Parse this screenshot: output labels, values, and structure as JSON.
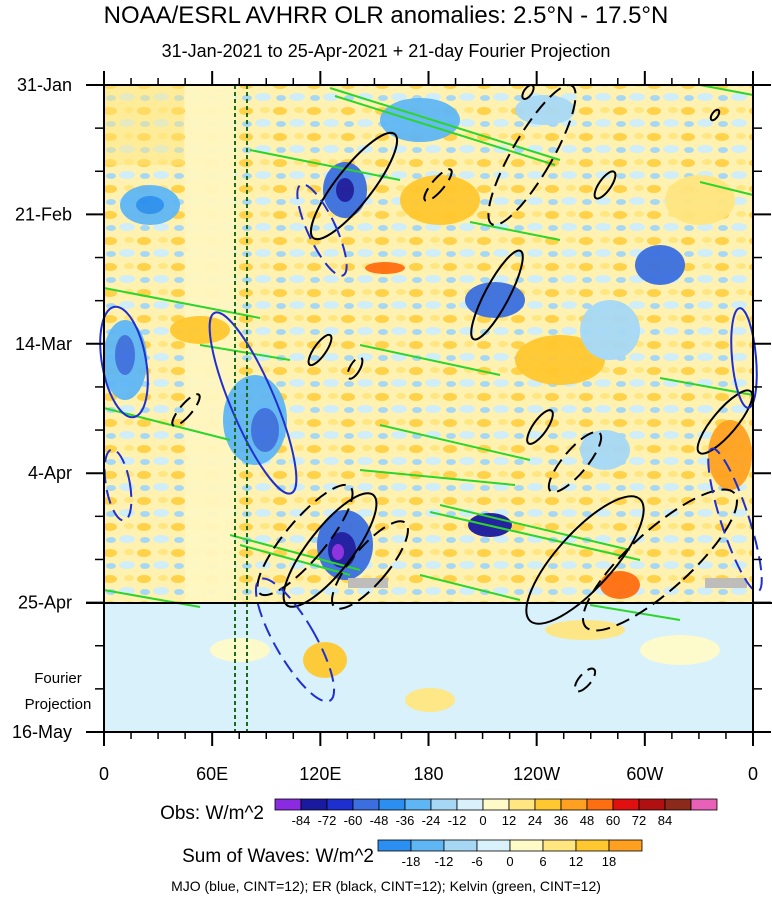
{
  "title": "NOAA/ESRL AVHRR OLR anomalies: 2.5°N - 17.5°N",
  "subtitle": "31-Jan-2021 to 25-Apr-2021 + 21-day Fourier Projection",
  "footer": "MJO (blue, CINT=12); ER (black, CINT=12); Kelvin (green, CINT=12)",
  "chart_data": {
    "type": "heatmap",
    "x_ticks": [
      "0",
      "60E",
      "120E",
      "180",
      "120W",
      "60W",
      "0"
    ],
    "y_ticks": [
      "31-Jan",
      "21-Feb",
      "14-Mar",
      "4-Apr",
      "25-Apr",
      "16-May"
    ],
    "y_annotation": "Fourier\nProjection",
    "xlim": [
      "0",
      "0"
    ],
    "ylim": [
      "31-Jan-2021",
      "16-May-2021"
    ],
    "obs_end": "25-Apr",
    "obs_legend": {
      "label": "Obs: W/m^2",
      "levels": [
        "-84",
        "-72",
        "-60",
        "-48",
        "-36",
        "-24",
        "-12",
        "0",
        "12",
        "24",
        "36",
        "48",
        "60",
        "72",
        "84"
      ],
      "colors": [
        "#8a2be2",
        "#1a1aa0",
        "#1e2fd0",
        "#3b6fe0",
        "#2a8ff0",
        "#5fb6f5",
        "#a6d8f6",
        "#d8f1fb",
        "#fffbc8",
        "#ffe680",
        "#ffc830",
        "#ffa020",
        "#ff6e10",
        "#e01010",
        "#b01010",
        "#8b2a1a",
        "#e860b8"
      ]
    },
    "waves_legend": {
      "label": "Sum of Waves: W/m^2",
      "levels": [
        "-18",
        "-12",
        "-6",
        "0",
        "6",
        "12",
        "18"
      ],
      "colors": [
        "#2a8ff0",
        "#5fb6f5",
        "#a6d8f6",
        "#d8f1fb",
        "#fffbc8",
        "#ffe680",
        "#ffc830",
        "#ffa020"
      ]
    },
    "wave_colors": {
      "mjo": "#1f2fd0",
      "er": "#000000",
      "kelvin": "#2bd52b"
    }
  }
}
